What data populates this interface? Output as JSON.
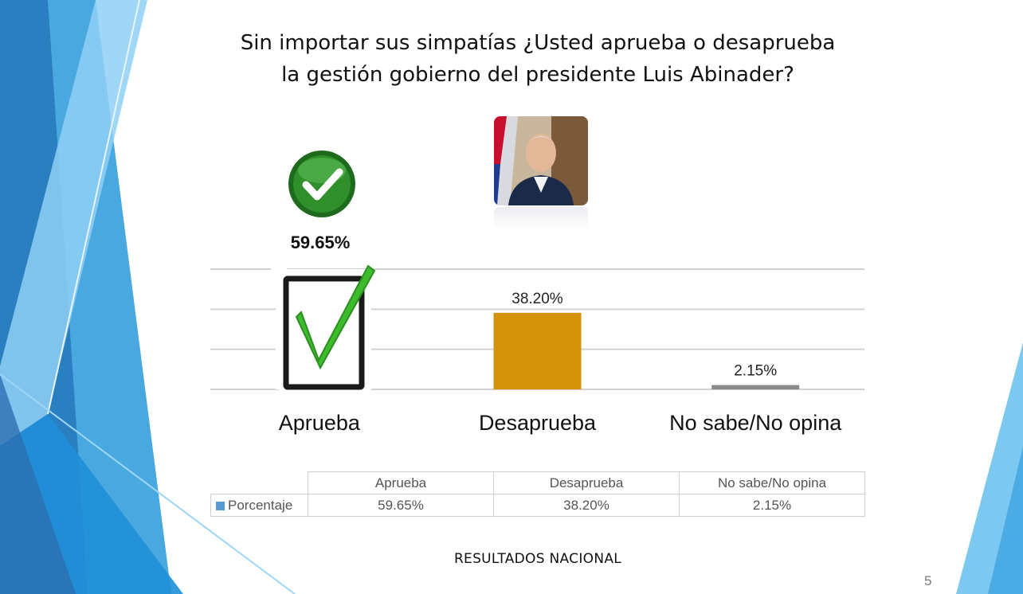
{
  "slide": {
    "title_line1": "Sin importar sus simpatías ¿Usted aprueba o desaprueba",
    "title_line2": "la gestión gobierno del presidente Luis Abinader?",
    "footer": "RESULTADOS NACIONAL",
    "page_number": "5"
  },
  "highlight": {
    "value_label": "59.65%",
    "check_icon": "check-circle-icon",
    "clipboard_icon": "clipboard-check-icon"
  },
  "chart_data": {
    "type": "bar",
    "categories": [
      "Aprueba",
      "Desaprueba",
      "No sabe/No opina"
    ],
    "series": [
      {
        "name": "Porcentaje",
        "values": [
          59.65,
          38.2,
          2.15
        ]
      }
    ],
    "value_labels": [
      "59.65%",
      "38.20%",
      "2.15%"
    ],
    "ylim": [
      0,
      60
    ],
    "grid": true,
    "colors": [
      "#ffffff",
      "#d4920b",
      "#8a8a8a"
    ],
    "legend_color": "#5b9bd5"
  },
  "data_table": {
    "headers": [
      "Aprueba",
      "Desaprueba",
      "No sabe/No opina"
    ],
    "row_label": "Porcentaje",
    "values": [
      "59.65%",
      "38.20%",
      "2.15%"
    ]
  }
}
